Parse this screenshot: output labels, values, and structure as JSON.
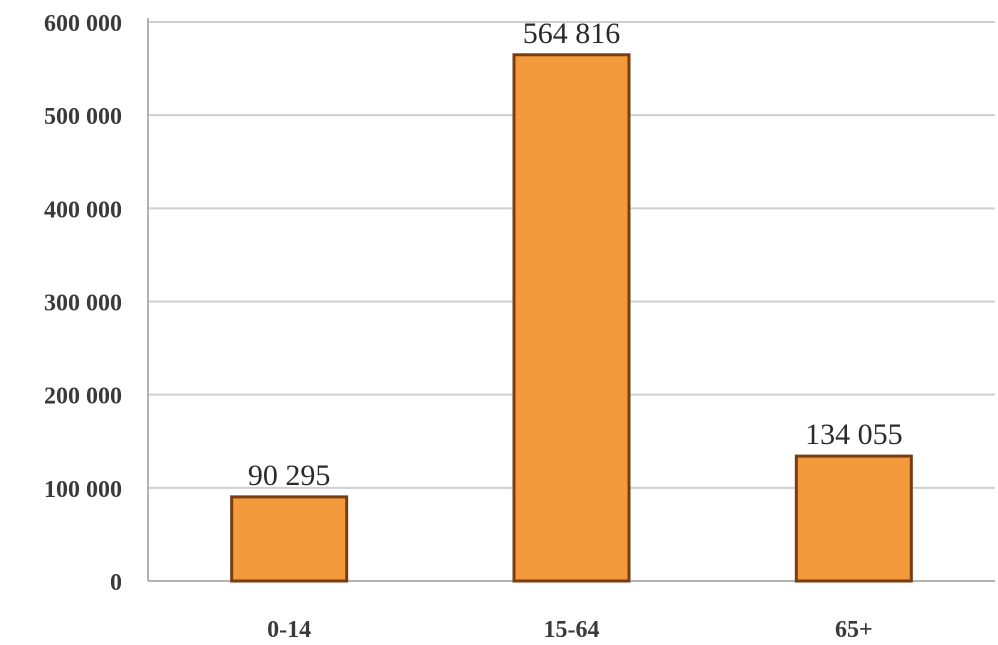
{
  "chart_data": {
    "type": "bar",
    "categories": [
      "0-14",
      "15-64",
      "65+"
    ],
    "values": [
      90295,
      564816,
      134055
    ],
    "data_labels": [
      "90 295",
      "564 816",
      "134 055"
    ],
    "title": "",
    "xlabel": "",
    "ylabel": "",
    "ylim": [
      0,
      600000
    ],
    "yticks": [
      0,
      100000,
      200000,
      300000,
      400000,
      500000,
      600000
    ],
    "ytick_labels": [
      "0",
      "100 000",
      "200 000",
      "300 000",
      "400 000",
      "500 000",
      "600 000"
    ],
    "grid": true,
    "legend": "none",
    "colors": {
      "bar_fill": "#f39b3c",
      "bar_stroke": "#7a3d12",
      "grid": "#cfcfcf",
      "axis": "#9a9a9a"
    }
  }
}
